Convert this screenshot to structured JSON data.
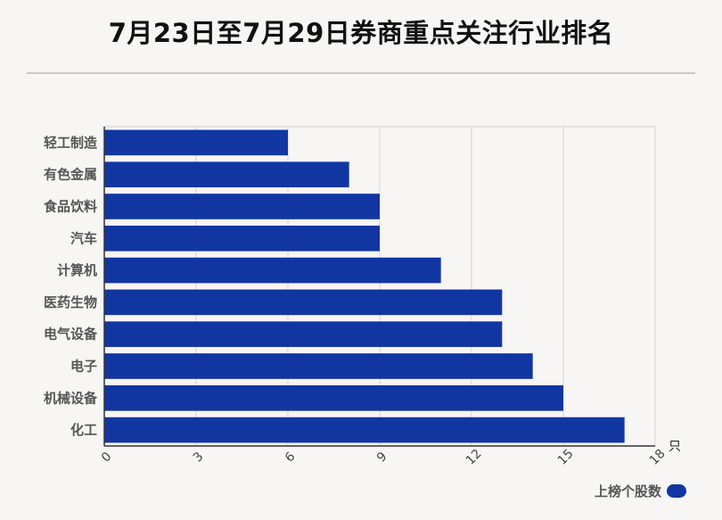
{
  "chart_data": {
    "type": "bar",
    "orientation": "horizontal",
    "title": "7月23日至7月29日券商重点关注行业排名",
    "categories": [
      "轻工制造",
      "有色金属",
      "食品饮料",
      "汽车",
      "计算机",
      "医药生物",
      "电气设备",
      "电子",
      "机械设备",
      "化工"
    ],
    "series": [
      {
        "name": "上榜个股数",
        "values": [
          6,
          8,
          9,
          9,
          11,
          13,
          13,
          14,
          15,
          17
        ],
        "color": "#1236a1"
      }
    ],
    "xlim": [
      0,
      18
    ],
    "xticks": [
      "0",
      "3",
      "6",
      "9",
      "12",
      "15",
      "18"
    ],
    "xunit": "只",
    "grid": true,
    "legend_position": "bottom-right"
  }
}
